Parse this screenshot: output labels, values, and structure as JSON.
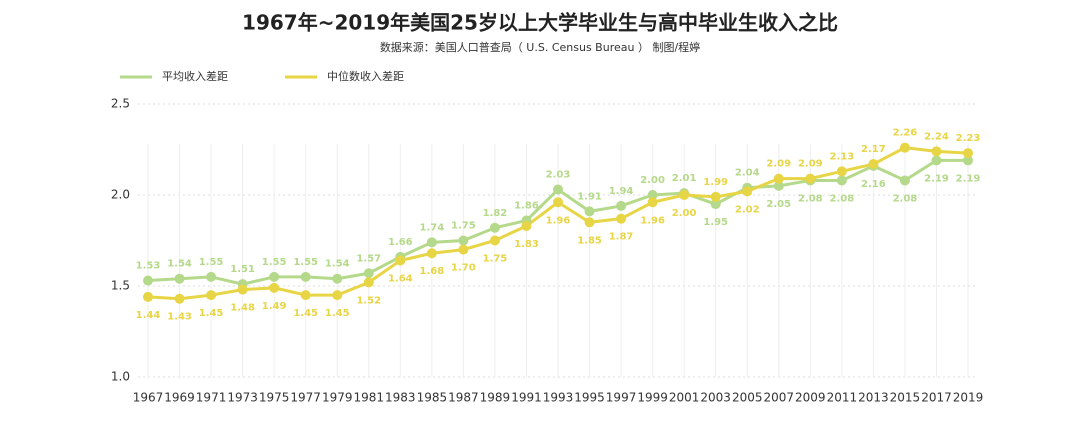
{
  "chart_data": {
    "type": "line",
    "title": "1967年~2019年美国25岁以上大学毕业生与高中毕业生收入之比",
    "subtitle": "数据来源：美国人口普查局（ U.S. Census Bureau ）   制图/程婷",
    "categories": [
      "1967",
      "1969",
      "1971",
      "1973",
      "1975",
      "1977",
      "1979",
      "1981",
      "1983",
      "1985",
      "1987",
      "1989",
      "1991",
      "1993",
      "1995",
      "1997",
      "1999",
      "2001",
      "2003",
      "2005",
      "2007",
      "2009",
      "2011",
      "2013",
      "2015",
      "2017",
      "2019"
    ],
    "series": [
      {
        "name": "平均收入差距",
        "color": "#b5d98a",
        "values": [
          1.53,
          1.54,
          1.55,
          1.51,
          1.55,
          1.55,
          1.54,
          1.57,
          1.66,
          1.74,
          1.75,
          1.82,
          1.86,
          2.03,
          1.91,
          1.94,
          2.0,
          2.01,
          1.95,
          2.04,
          2.05,
          2.08,
          2.08,
          2.16,
          2.08,
          2.19,
          2.19
        ],
        "value_labels": [
          "1.53",
          "1.54",
          "1.55",
          "1.51",
          "1.55",
          "1.55",
          "1.54",
          "1.57",
          "1.66",
          "1.74",
          "1.75",
          "1.82",
          "1.86",
          "2.03",
          "1.91",
          "1.94",
          "2.00",
          "2.01",
          "1.95",
          "2.04",
          "2.05",
          "2.08",
          "2.08",
          "2.16",
          "2.08",
          "2.19",
          "2.19"
        ]
      },
      {
        "name": "中位数收入差距",
        "color": "#e8d545",
        "values": [
          1.44,
          1.43,
          1.45,
          1.48,
          1.49,
          1.45,
          1.45,
          1.52,
          1.64,
          1.68,
          1.7,
          1.75,
          1.83,
          1.96,
          1.85,
          1.87,
          1.96,
          2.0,
          1.99,
          2.02,
          2.09,
          2.09,
          2.13,
          2.17,
          2.26,
          2.24,
          2.23
        ],
        "value_labels": [
          "1.44",
          "1.43",
          "1.45",
          "1.48",
          "1.49",
          "1.45",
          "1.45",
          "1.52",
          "1.64",
          "1.68",
          "1.70",
          "1.75",
          "1.83",
          "1.96",
          "1.85",
          "1.87",
          "1.96",
          "2.00",
          "1.99",
          "2.02",
          "2.09",
          "2.09",
          "2.13",
          "2.17",
          "2.26",
          "2.24",
          "2.23"
        ]
      }
    ],
    "ylim": [
      1.0,
      2.5
    ],
    "yticks": [
      {
        "value": 1,
        "label": "1.0"
      },
      1.5,
      {
        "value": 2,
        "label": "2.0"
      },
      2.5
    ],
    "grid": true,
    "legend": "top-left"
  }
}
